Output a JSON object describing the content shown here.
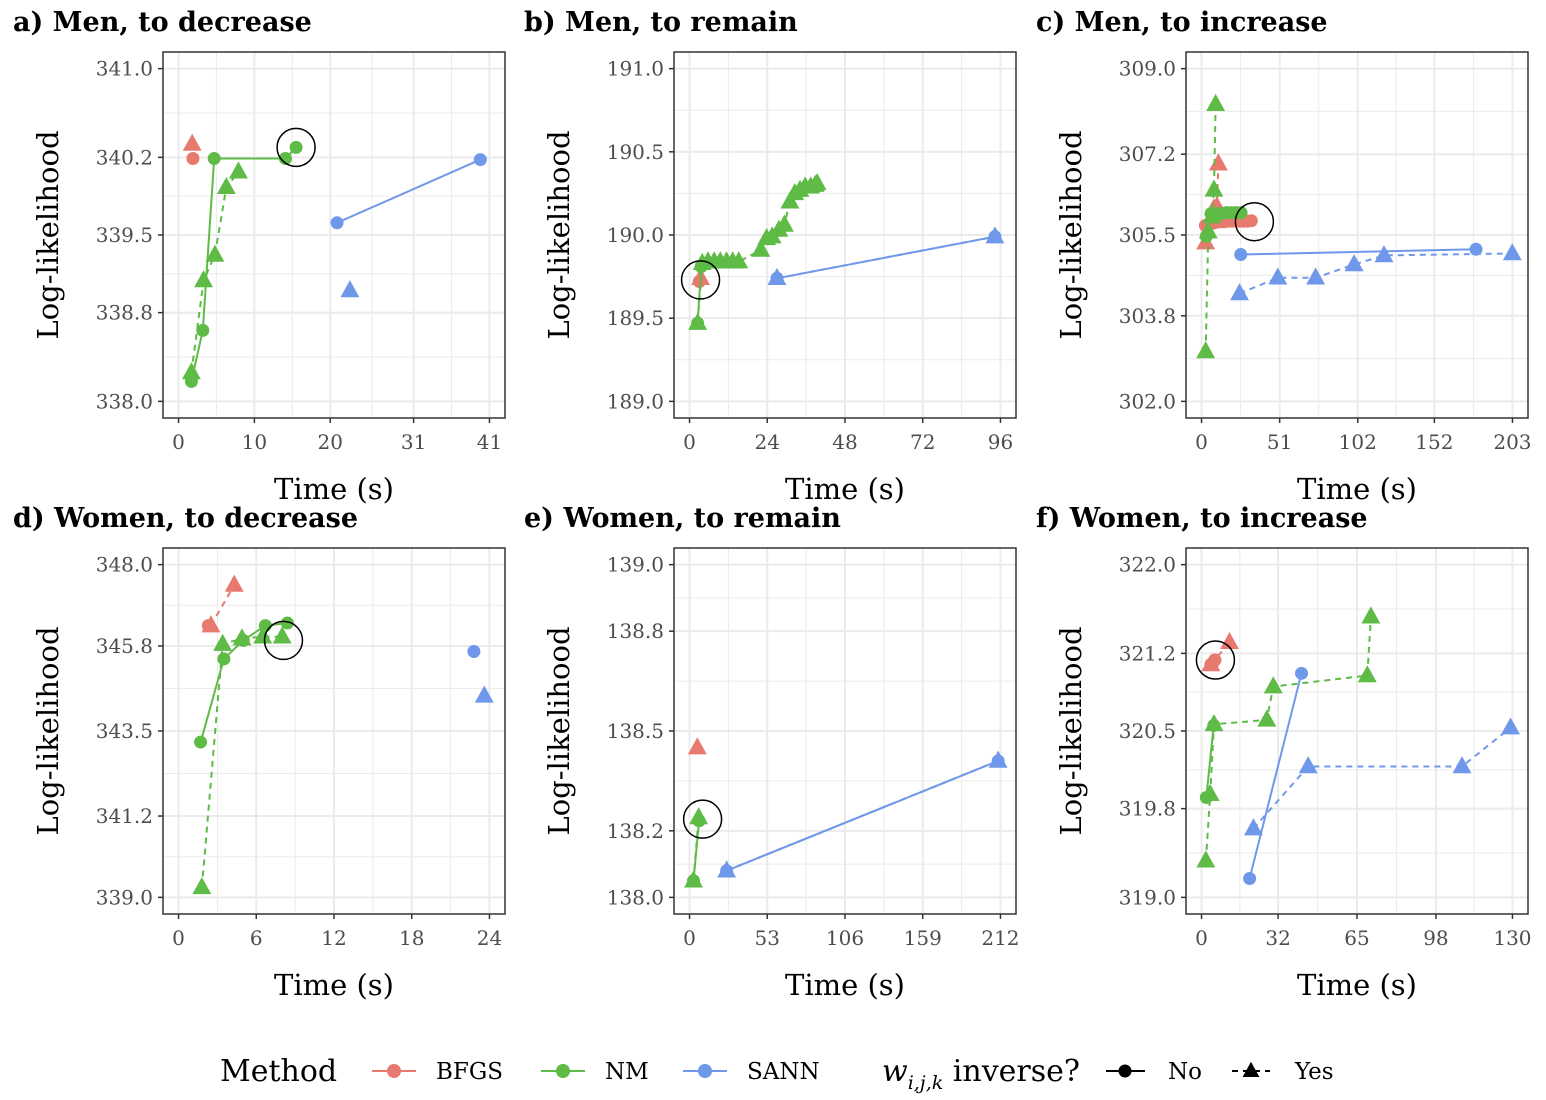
{
  "colors": {
    "BFGS": "#E8796E",
    "NM": "#5DBB46",
    "SANN": "#6F98EA",
    "grid": "#EBEBEB",
    "frame": "#333333"
  },
  "chart_data": [
    {
      "type": "line",
      "title": "a) Men, to decrease",
      "xlabel": "Time (s)",
      "ylabel": "Log-likelihood",
      "xticks": [
        0,
        10,
        20,
        31,
        41
      ],
      "yticks": [
        "338.0",
        "338.8",
        "339.5",
        "340.2",
        "341.0"
      ],
      "xlim": [
        0,
        41
      ],
      "ylim": [
        338.0,
        341.0
      ],
      "series": [
        {
          "method": "BFGS",
          "inverse": "No",
          "x": [
            1.9
          ],
          "y": [
            340.19
          ]
        },
        {
          "method": "BFGS",
          "inverse": "Yes",
          "x": [
            1.8
          ],
          "y": [
            340.32
          ]
        },
        {
          "method": "NM",
          "inverse": "No",
          "x": [
            1.7,
            3.2,
            4.7,
            14.1,
            15.5
          ],
          "y": [
            338.18,
            338.64,
            340.19,
            340.19,
            340.29
          ]
        },
        {
          "method": "NM",
          "inverse": "Yes",
          "x": [
            1.7,
            3.3,
            4.8,
            6.3,
            7.9
          ],
          "y": [
            338.26,
            339.09,
            339.32,
            339.93,
            340.07
          ]
        },
        {
          "method": "SANN",
          "inverse": "No",
          "x": [
            20.9,
            39.8
          ],
          "y": [
            339.61,
            340.18
          ]
        },
        {
          "method": "SANN",
          "inverse": "Yes",
          "x": [
            22.6
          ],
          "y": [
            339.0
          ]
        }
      ],
      "highlight": {
        "x": 15.5,
        "y": 340.29
      }
    },
    {
      "type": "line",
      "title": "b) Men, to remain",
      "xlabel": "Time (s)",
      "ylabel": "Log-likelihood",
      "xticks": [
        0,
        24,
        48,
        72,
        96
      ],
      "yticks": [
        "189.0",
        "189.5",
        "190.0",
        "190.5",
        "191.0"
      ],
      "xlim": [
        0,
        96
      ],
      "ylim": [
        189.0,
        191.0
      ],
      "series": [
        {
          "method": "BFGS",
          "inverse": "No",
          "x": [
            3.0
          ],
          "y": [
            189.72
          ]
        },
        {
          "method": "BFGS",
          "inverse": "Yes",
          "x": [
            3.4
          ],
          "y": [
            189.74
          ]
        },
        {
          "method": "NM",
          "inverse": "No",
          "x": [
            2.5,
            3.6
          ],
          "y": [
            189.47,
            189.81
          ]
        },
        {
          "method": "NM",
          "inverse": "Yes",
          "x": [
            2.5,
            3.9,
            5.7,
            7.6,
            9.5,
            11.4,
            13.3,
            15.2,
            22.0,
            23.8,
            25.5,
            27.6,
            29.3,
            31.0,
            32.5,
            34.1,
            35.7,
            37.4,
            38.8,
            39.4
          ],
          "y": [
            189.47,
            189.83,
            189.84,
            189.84,
            189.84,
            189.84,
            189.84,
            189.84,
            189.91,
            189.98,
            189.99,
            190.03,
            190.06,
            190.2,
            190.25,
            190.27,
            190.29,
            190.29,
            190.3,
            190.31
          ]
        },
        {
          "method": "SANN",
          "inverse": "No",
          "x": [
            27.0,
            94.3
          ],
          "y": [
            189.74,
            189.99
          ]
        },
        {
          "method": "SANN",
          "inverse": "Yes",
          "x": [
            27.0,
            94.3
          ],
          "y": [
            189.74,
            189.99
          ]
        }
      ],
      "highlight": {
        "x": 3.4,
        "y": 189.73
      }
    },
    {
      "type": "line",
      "title": "c) Men, to increase",
      "xlabel": "Time (s)",
      "ylabel": "Log-likelihood",
      "xticks": [
        0,
        51,
        102,
        152,
        203
      ],
      "yticks": [
        "302.0",
        "303.8",
        "305.5",
        "307.2",
        "309.0"
      ],
      "xlim": [
        0,
        203
      ],
      "ylim": [
        302.0,
        309.0
      ],
      "series": [
        {
          "method": "BFGS",
          "inverse": "No",
          "x": [
            2.5,
            5.0,
            7.5,
            10.0,
            12.5,
            15.0,
            17.5,
            20.0,
            22.5,
            25.0,
            27.5,
            30.0,
            32.5
          ],
          "y": [
            305.7,
            305.73,
            305.75,
            305.77,
            305.78,
            305.78,
            305.79,
            305.79,
            305.79,
            305.79,
            305.79,
            305.79,
            305.8
          ]
        },
        {
          "method": "BFGS",
          "inverse": "Yes",
          "x": [
            2.7,
            8.0,
            10.0,
            11.0
          ],
          "y": [
            305.34,
            306.05,
            306.1,
            307.0
          ]
        },
        {
          "method": "NM",
          "inverse": "No",
          "x": [
            3.1,
            6.2,
            9.5,
            12.8,
            16.2,
            19.4,
            22.7,
            25.8
          ],
          "y": [
            305.47,
            305.95,
            305.95,
            305.95,
            305.97,
            305.97,
            305.97,
            305.97
          ]
        },
        {
          "method": "NM",
          "inverse": "Yes",
          "x": [
            2.7,
            4.4,
            6.8,
            8.1,
            9.2
          ],
          "y": [
            303.05,
            305.57,
            305.89,
            306.45,
            308.25
          ]
        },
        {
          "method": "SANN",
          "inverse": "No",
          "x": [
            25.6,
            179.2
          ],
          "y": [
            305.09,
            305.2
          ]
        },
        {
          "method": "SANN",
          "inverse": "Yes",
          "x": [
            24.8,
            49.8,
            74.5,
            99.6,
            119.1,
            202.9
          ],
          "y": [
            304.27,
            304.6,
            304.6,
            304.88,
            305.07,
            305.11
          ]
        }
      ],
      "highlight": {
        "x": 34.5,
        "y": 305.78
      }
    },
    {
      "type": "line",
      "title": "d) Women, to decrease",
      "xlabel": "Time (s)",
      "ylabel": "Log-likelihood",
      "xticks": [
        0,
        6,
        12,
        18,
        24
      ],
      "yticks": [
        "339.0",
        "341.2",
        "343.5",
        "345.8",
        "348.0"
      ],
      "xlim": [
        0,
        24
      ],
      "ylim": [
        339.0,
        348.0
      ],
      "series": [
        {
          "method": "BFGS",
          "inverse": "No",
          "x": [
            2.3
          ],
          "y": [
            346.35
          ]
        },
        {
          "method": "BFGS",
          "inverse": "Yes",
          "x": [
            2.5,
            4.3
          ],
          "y": [
            346.35,
            347.45
          ]
        },
        {
          "method": "NM",
          "inverse": "No",
          "x": [
            1.7,
            3.5,
            5.0,
            6.7,
            8.4
          ],
          "y": [
            343.2,
            345.45,
            345.95,
            346.35,
            346.42
          ]
        },
        {
          "method": "NM",
          "inverse": "Yes",
          "x": [
            1.8,
            3.4,
            4.9,
            6.5,
            8.0
          ],
          "y": [
            339.27,
            345.85,
            346.0,
            346.05,
            346.05
          ]
        },
        {
          "method": "SANN",
          "inverse": "No",
          "x": [
            22.8
          ],
          "y": [
            345.65
          ]
        },
        {
          "method": "SANN",
          "inverse": "Yes",
          "x": [
            23.6
          ],
          "y": [
            344.45
          ]
        }
      ],
      "highlight": {
        "x": 8.1,
        "y": 345.95
      }
    },
    {
      "type": "line",
      "title": "e) Women, to remain",
      "xlabel": "Time (s)",
      "ylabel": "Log-likelihood",
      "xticks": [
        0,
        53,
        106,
        159,
        212
      ],
      "yticks": [
        "138.0",
        "138.2",
        "138.5",
        "138.8",
        "139.0"
      ],
      "xlim": [
        0,
        212
      ],
      "ylim": [
        138.0,
        139.0
      ],
      "series": [
        {
          "method": "BFGS",
          "inverse": "Yes",
          "x": [
            5.3
          ],
          "y": [
            138.45
          ]
        },
        {
          "method": "NM",
          "inverse": "No",
          "x": [
            2.7,
            6.5
          ],
          "y": [
            138.05,
            138.23
          ]
        },
        {
          "method": "NM",
          "inverse": "Yes",
          "x": [
            2.7,
            6.2
          ],
          "y": [
            138.05,
            138.24
          ]
        },
        {
          "method": "SANN",
          "inverse": "No",
          "x": [
            25.3,
            210.4
          ],
          "y": [
            138.08,
            138.41
          ]
        },
        {
          "method": "SANN",
          "inverse": "Yes",
          "x": [
            25.3,
            210.4
          ],
          "y": [
            138.08,
            138.41
          ]
        }
      ],
      "highlight": {
        "x": 8.9,
        "y": 138.235
      }
    },
    {
      "type": "line",
      "title": "f) Women, to increase",
      "xlabel": "Time (s)",
      "ylabel": "Log-likelihood",
      "xticks": [
        0,
        32,
        65,
        98,
        130
      ],
      "yticks": [
        "319.0",
        "319.8",
        "320.5",
        "321.2",
        "322.0"
      ],
      "xlim": [
        0,
        130
      ],
      "ylim": [
        319.0,
        322.0
      ],
      "series": [
        {
          "method": "BFGS",
          "inverse": "No",
          "x": [
            3.9,
            4.9,
            5.6
          ],
          "y": [
            321.1,
            321.12,
            321.14
          ]
        },
        {
          "method": "BFGS",
          "inverse": "Yes",
          "x": [
            3.9,
            11.7
          ],
          "y": [
            321.1,
            321.3
          ]
        },
        {
          "method": "NM",
          "inverse": "No",
          "x": [
            2.0,
            5.1
          ],
          "y": [
            319.9,
            320.55
          ]
        },
        {
          "method": "NM",
          "inverse": "Yes",
          "x": [
            1.8,
            3.6,
            5.2,
            27.3,
            30.0,
            69.3,
            70.8
          ],
          "y": [
            319.33,
            319.93,
            320.56,
            320.6,
            320.9,
            321.0,
            321.53
          ]
        },
        {
          "method": "SANN",
          "inverse": "No",
          "x": [
            20.1,
            41.8
          ],
          "y": [
            319.17,
            321.02
          ]
        },
        {
          "method": "SANN",
          "inverse": "Yes",
          "x": [
            21.7,
            44.6,
            108.9,
            129.2
          ],
          "y": [
            319.62,
            320.18,
            320.18,
            320.53
          ]
        }
      ],
      "highlight": {
        "x": 5.8,
        "y": 321.14
      }
    }
  ],
  "legend": {
    "method_title": "Method",
    "methods": [
      "BFGS",
      "NM",
      "SANN"
    ],
    "inverse_title": "w",
    "inverse_subscript": "i,j,k",
    "inverse_suffix": " inverse?",
    "inverse_items": [
      "No",
      "Yes"
    ]
  }
}
